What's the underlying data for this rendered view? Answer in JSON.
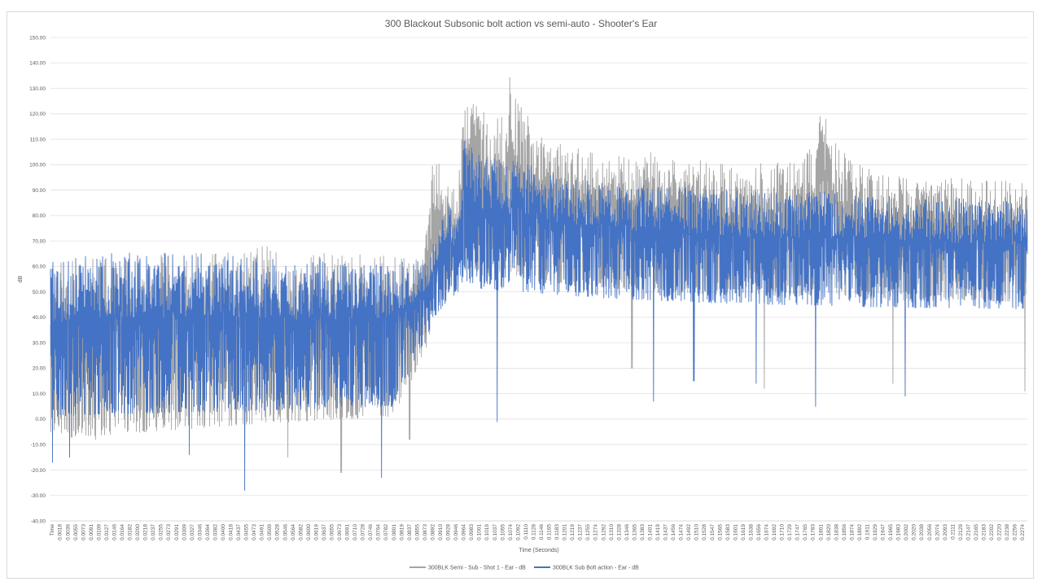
{
  "chart_data": {
    "type": "line",
    "title": "300 Blackout Subsonic bolt action vs semi-auto - Shooter's Ear",
    "xlabel": "Time (Seconds)",
    "ylabel": "dB",
    "ylim": [
      -40,
      150
    ],
    "yticks": [
      "-40.00",
      "-30.00",
      "-20.00",
      "-10.00",
      "0.00",
      "10.00",
      "20.00",
      "30.00",
      "40.00",
      "50.00",
      "60.00",
      "70.00",
      "80.00",
      "90.00",
      "100.00",
      "110.00",
      "120.00",
      "130.00",
      "140.00",
      "150.00"
    ],
    "xticks": [
      "Time",
      "0.0018",
      "0.0036",
      "0.0055",
      "0.0073",
      "0.0091",
      "0.0109",
      "0.0127",
      "0.0146",
      "0.0164",
      "0.0182",
      "0.0200",
      "0.0218",
      "0.0237",
      "0.0255",
      "0.0273",
      "0.0291",
      "0.0309",
      "0.0327",
      "0.0346",
      "0.0364",
      "0.0382",
      "0.0400",
      "0.0418",
      "0.0437",
      "0.0455",
      "0.0473",
      "0.0491",
      "0.0509",
      "0.0528",
      "0.0546",
      "0.0564",
      "0.0582",
      "0.0600",
      "0.0619",
      "0.0637",
      "0.0655",
      "0.0673",
      "0.0691",
      "0.0710",
      "0.0728",
      "0.0746",
      "0.0764",
      "0.0782",
      "0.0801",
      "0.0819",
      "0.0837",
      "0.0855",
      "0.0873",
      "0.0892",
      "0.0910",
      "0.0928",
      "0.0946",
      "0.0964",
      "0.0983",
      "0.1001",
      "0.1019",
      "0.1037",
      "0.1055",
      "0.1074",
      "0.1092",
      "0.1110",
      "0.1128",
      "0.1146",
      "0.1165",
      "0.1183",
      "0.1201",
      "0.1219",
      "0.1237",
      "0.1255",
      "0.1274",
      "0.1292",
      "0.1310",
      "0.1328",
      "0.1346",
      "0.1365",
      "0.1383",
      "0.1401",
      "0.1419",
      "0.1437",
      "0.1456",
      "0.1474",
      "0.1492",
      "0.1510",
      "0.1528",
      "0.1547",
      "0.1565",
      "0.1583",
      "0.1601",
      "0.1619",
      "0.1638",
      "0.1656",
      "0.1674",
      "0.1692",
      "0.1710",
      "0.1729",
      "0.1747",
      "0.1765",
      "0.1783",
      "0.1801",
      "0.1820",
      "0.1838",
      "0.1856",
      "0.1874",
      "0.1892",
      "0.1911",
      "0.1929",
      "0.1947",
      "0.1965",
      "0.1983",
      "0.2002",
      "0.2020",
      "0.2038",
      "0.2056",
      "0.2074",
      "0.2093",
      "0.2111",
      "0.2129",
      "0.2147",
      "0.2165",
      "0.2183",
      "0.2202",
      "0.2220",
      "0.2238",
      "0.2256",
      "0.2274"
    ],
    "x_range": [
      0,
      0.2285
    ],
    "series": [
      {
        "name": "300BLK Semi - Sub - Shot 1 - Ear - dB",
        "color": "#a5a5a5",
        "upper_envelope": [
          [
            0,
            62
          ],
          [
            0.02,
            64
          ],
          [
            0.04,
            66
          ],
          [
            0.05,
            68
          ],
          [
            0.06,
            66
          ],
          [
            0.08,
            64
          ],
          [
            0.087,
            64
          ],
          [
            0.0885,
            85
          ],
          [
            0.0895,
            103
          ],
          [
            0.091,
            102
          ],
          [
            0.0925,
            92
          ],
          [
            0.095,
            90
          ],
          [
            0.0965,
            120
          ],
          [
            0.098,
            126
          ],
          [
            0.101,
            123
          ],
          [
            0.103,
            115
          ],
          [
            0.105,
            122
          ],
          [
            0.107,
            124
          ],
          [
            0.1075,
            138
          ],
          [
            0.108,
            128
          ],
          [
            0.11,
            124
          ],
          [
            0.112,
            118
          ],
          [
            0.115,
            112
          ],
          [
            0.12,
            108
          ],
          [
            0.13,
            104
          ],
          [
            0.14,
            106
          ],
          [
            0.15,
            102
          ],
          [
            0.16,
            100
          ],
          [
            0.17,
            101
          ],
          [
            0.175,
            101
          ],
          [
            0.178,
            108
          ],
          [
            0.18,
            119
          ],
          [
            0.182,
            118
          ],
          [
            0.184,
            110
          ],
          [
            0.186,
            104
          ],
          [
            0.19,
            99
          ],
          [
            0.2,
            96
          ],
          [
            0.21,
            95
          ],
          [
            0.22,
            94
          ],
          [
            0.2285,
            93
          ]
        ],
        "lower_envelope": [
          [
            0,
            -20
          ],
          [
            0.04,
            -15
          ],
          [
            0.08,
            -10
          ],
          [
            0.088,
            20
          ],
          [
            0.092,
            40
          ],
          [
            0.096,
            48
          ],
          [
            0.1,
            45
          ],
          [
            0.15,
            40
          ],
          [
            0.2,
            38
          ],
          [
            0.2285,
            38
          ]
        ],
        "notable_dips": [
          [
            0.0105,
            -8
          ],
          [
            0.0555,
            -15
          ],
          [
            0.068,
            -21
          ],
          [
            0.084,
            -8
          ],
          [
            0.136,
            20
          ],
          [
            0.167,
            12
          ],
          [
            0.197,
            14
          ],
          [
            0.228,
            11
          ]
        ]
      },
      {
        "name": "300BLK Sub Bolt action - Ear - dB",
        "color": "#4472c4",
        "upper_envelope": [
          [
            0,
            63
          ],
          [
            0.02,
            66
          ],
          [
            0.04,
            65
          ],
          [
            0.06,
            63
          ],
          [
            0.08,
            62
          ],
          [
            0.088,
            62
          ],
          [
            0.093,
            86
          ],
          [
            0.0955,
            78
          ],
          [
            0.0965,
            110
          ],
          [
            0.098,
            112
          ],
          [
            0.1,
            104
          ],
          [
            0.11,
            101
          ],
          [
            0.12,
            96
          ],
          [
            0.13,
            93
          ],
          [
            0.14,
            92
          ],
          [
            0.15,
            91
          ],
          [
            0.16,
            90
          ],
          [
            0.17,
            89
          ],
          [
            0.18,
            90
          ],
          [
            0.19,
            88
          ],
          [
            0.2,
            88
          ],
          [
            0.21,
            87
          ],
          [
            0.22,
            86
          ],
          [
            0.2285,
            85
          ]
        ],
        "lower_envelope": [
          [
            0,
            -10
          ],
          [
            0.04,
            -8
          ],
          [
            0.08,
            -5
          ],
          [
            0.09,
            35
          ],
          [
            0.096,
            45
          ],
          [
            0.1,
            42
          ],
          [
            0.15,
            38
          ],
          [
            0.2,
            36
          ],
          [
            0.2285,
            36
          ]
        ],
        "notable_dips": [
          [
            0.0005,
            -17
          ],
          [
            0.0045,
            -15
          ],
          [
            0.0325,
            -14
          ],
          [
            0.0455,
            -28
          ],
          [
            0.0775,
            -23
          ],
          [
            0.1045,
            -1
          ],
          [
            0.141,
            7
          ],
          [
            0.1505,
            15
          ],
          [
            0.165,
            14
          ],
          [
            0.179,
            5
          ],
          [
            0.2,
            9
          ]
        ]
      }
    ],
    "legend": {
      "position": "bottom-center",
      "show": true
    },
    "grid": {
      "horizontal": true,
      "vertical": false
    }
  }
}
